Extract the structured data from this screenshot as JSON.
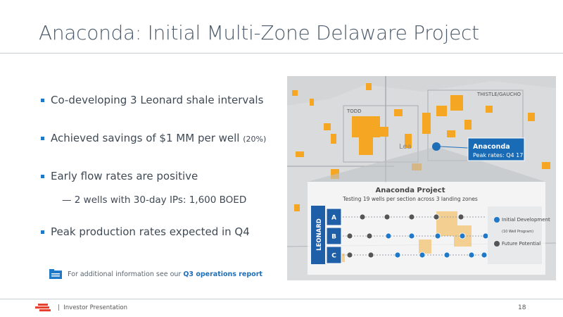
{
  "header": {
    "title": "Anaconda: Initial Multi-Zone Delaware Project"
  },
  "bullets": [
    {
      "text": "Co-developing 3 Leonard shale intervals"
    },
    {
      "text": "Achieved savings of $1 MM per well",
      "note": "(20%)"
    },
    {
      "text": "Early flow rates are positive",
      "sub": "— 2 wells with 30-day IPs: 1,600 BOED"
    },
    {
      "text": "Peak production rates expected in Q4"
    }
  ],
  "info": {
    "text": "For additional information see our",
    "link": "Q3 operations report"
  },
  "map": {
    "labels": [
      "TODD",
      "THISTLE/GAUCHO",
      "Lea"
    ],
    "callout": {
      "title": "Anaconda",
      "text": "Peak rates: Q4 17"
    },
    "inset": {
      "title": "Anaconda Project",
      "subtitle": "Testing 19 wells per section across 3 landing zones",
      "formation": "LEONARD",
      "zones": [
        "A",
        "B",
        "C"
      ],
      "legend": [
        {
          "label": "Initial Development",
          "note": "(10 Well Program)"
        },
        {
          "label": "Future Potential"
        }
      ]
    }
  },
  "footer": {
    "label": "Investor Presentation",
    "page": "18"
  }
}
